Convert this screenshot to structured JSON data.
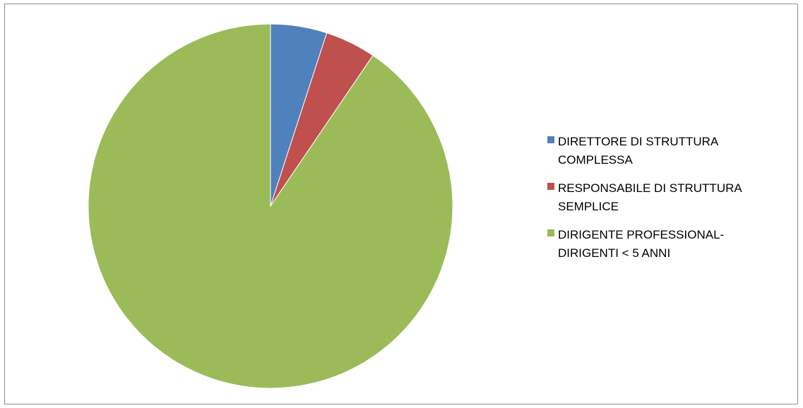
{
  "chart_data": {
    "type": "pie",
    "title": "",
    "categories": [
      "DIRETTORE DI STRUTTURA\nCOMPLESSA",
      "RESPONSABILE DI STRUTTURA\nSEMPLICE",
      "DIRIGENTE PROFESSIONAL-\nDIRIGENTI < 5 ANNI"
    ],
    "values": [
      5,
      4.5,
      90.5
    ],
    "colors": [
      "#4f81bd",
      "#c0504d",
      "#9bbb59"
    ],
    "legend": "right",
    "start_angle_deg": 0,
    "direction": "clockwise"
  }
}
